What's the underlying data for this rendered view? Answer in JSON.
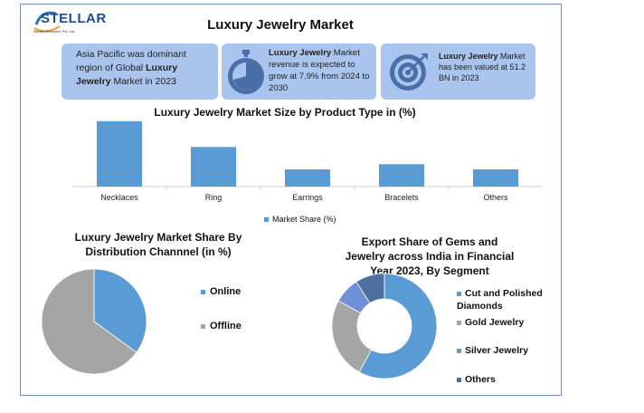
{
  "logo": {
    "name": "STELLAR",
    "sub": "Market Research Pvt. Ltd."
  },
  "title": "Luxury Jewelry Market",
  "cards": [
    {
      "pre": "Asia Pacific was dominant region of Global ",
      "bold": "Luxury Jewelry",
      "post": " Market in 2023"
    },
    {
      "pre": "",
      "bold": "Luxury Jewelry",
      "post": " Market revenue is expected to grow at 7.9% from 2024 to 2030"
    },
    {
      "pre": "",
      "bold": "Luxury Jewelry",
      "post": " Market has been valued at 51.2 BN in 2023"
    }
  ],
  "colors": {
    "blue": "#5b9bd5",
    "gray": "#a5a5a5",
    "slate": "#4472c4",
    "steel": "#8faadc",
    "dark": "#44546a",
    "card": "#a9c5ee"
  },
  "icons": {
    "card2": "stopwatch-icon",
    "card3": "target-icon"
  },
  "chart_data": [
    {
      "type": "bar",
      "title": "Luxury Jewelry Market Size by Product Type in (%)",
      "categories": [
        "Necklaces",
        "Ring",
        "Earrings",
        "Bracelets",
        "Others"
      ],
      "series": [
        {
          "name": "Market Share (%)",
          "values": [
            38,
            23,
            10,
            13,
            10
          ]
        }
      ],
      "ylim": [
        0,
        40
      ],
      "grid": false,
      "legend": "bottom"
    },
    {
      "type": "pie",
      "title": "Luxury Jewelry Market Share By Distribution Channnel (in %)",
      "labels": [
        "Online",
        "Offline"
      ],
      "values": [
        35,
        65
      ],
      "colors": [
        "#5b9bd5",
        "#a5a5a5"
      ],
      "legend": "right"
    },
    {
      "type": "pie",
      "title": "Export Share of Gems and Jewelry across India in Financial Year 2023, By Segment",
      "donut": true,
      "labels": [
        "Cut and Polished Diamonds",
        "Gold Jewelry",
        "Silver Jewelry",
        "Others"
      ],
      "values": [
        58,
        25,
        8,
        9
      ],
      "colors": [
        "#5b9bd5",
        "#a5a5a5",
        "#6f8fd8",
        "#4f6f9f"
      ],
      "legend": "right"
    }
  ]
}
